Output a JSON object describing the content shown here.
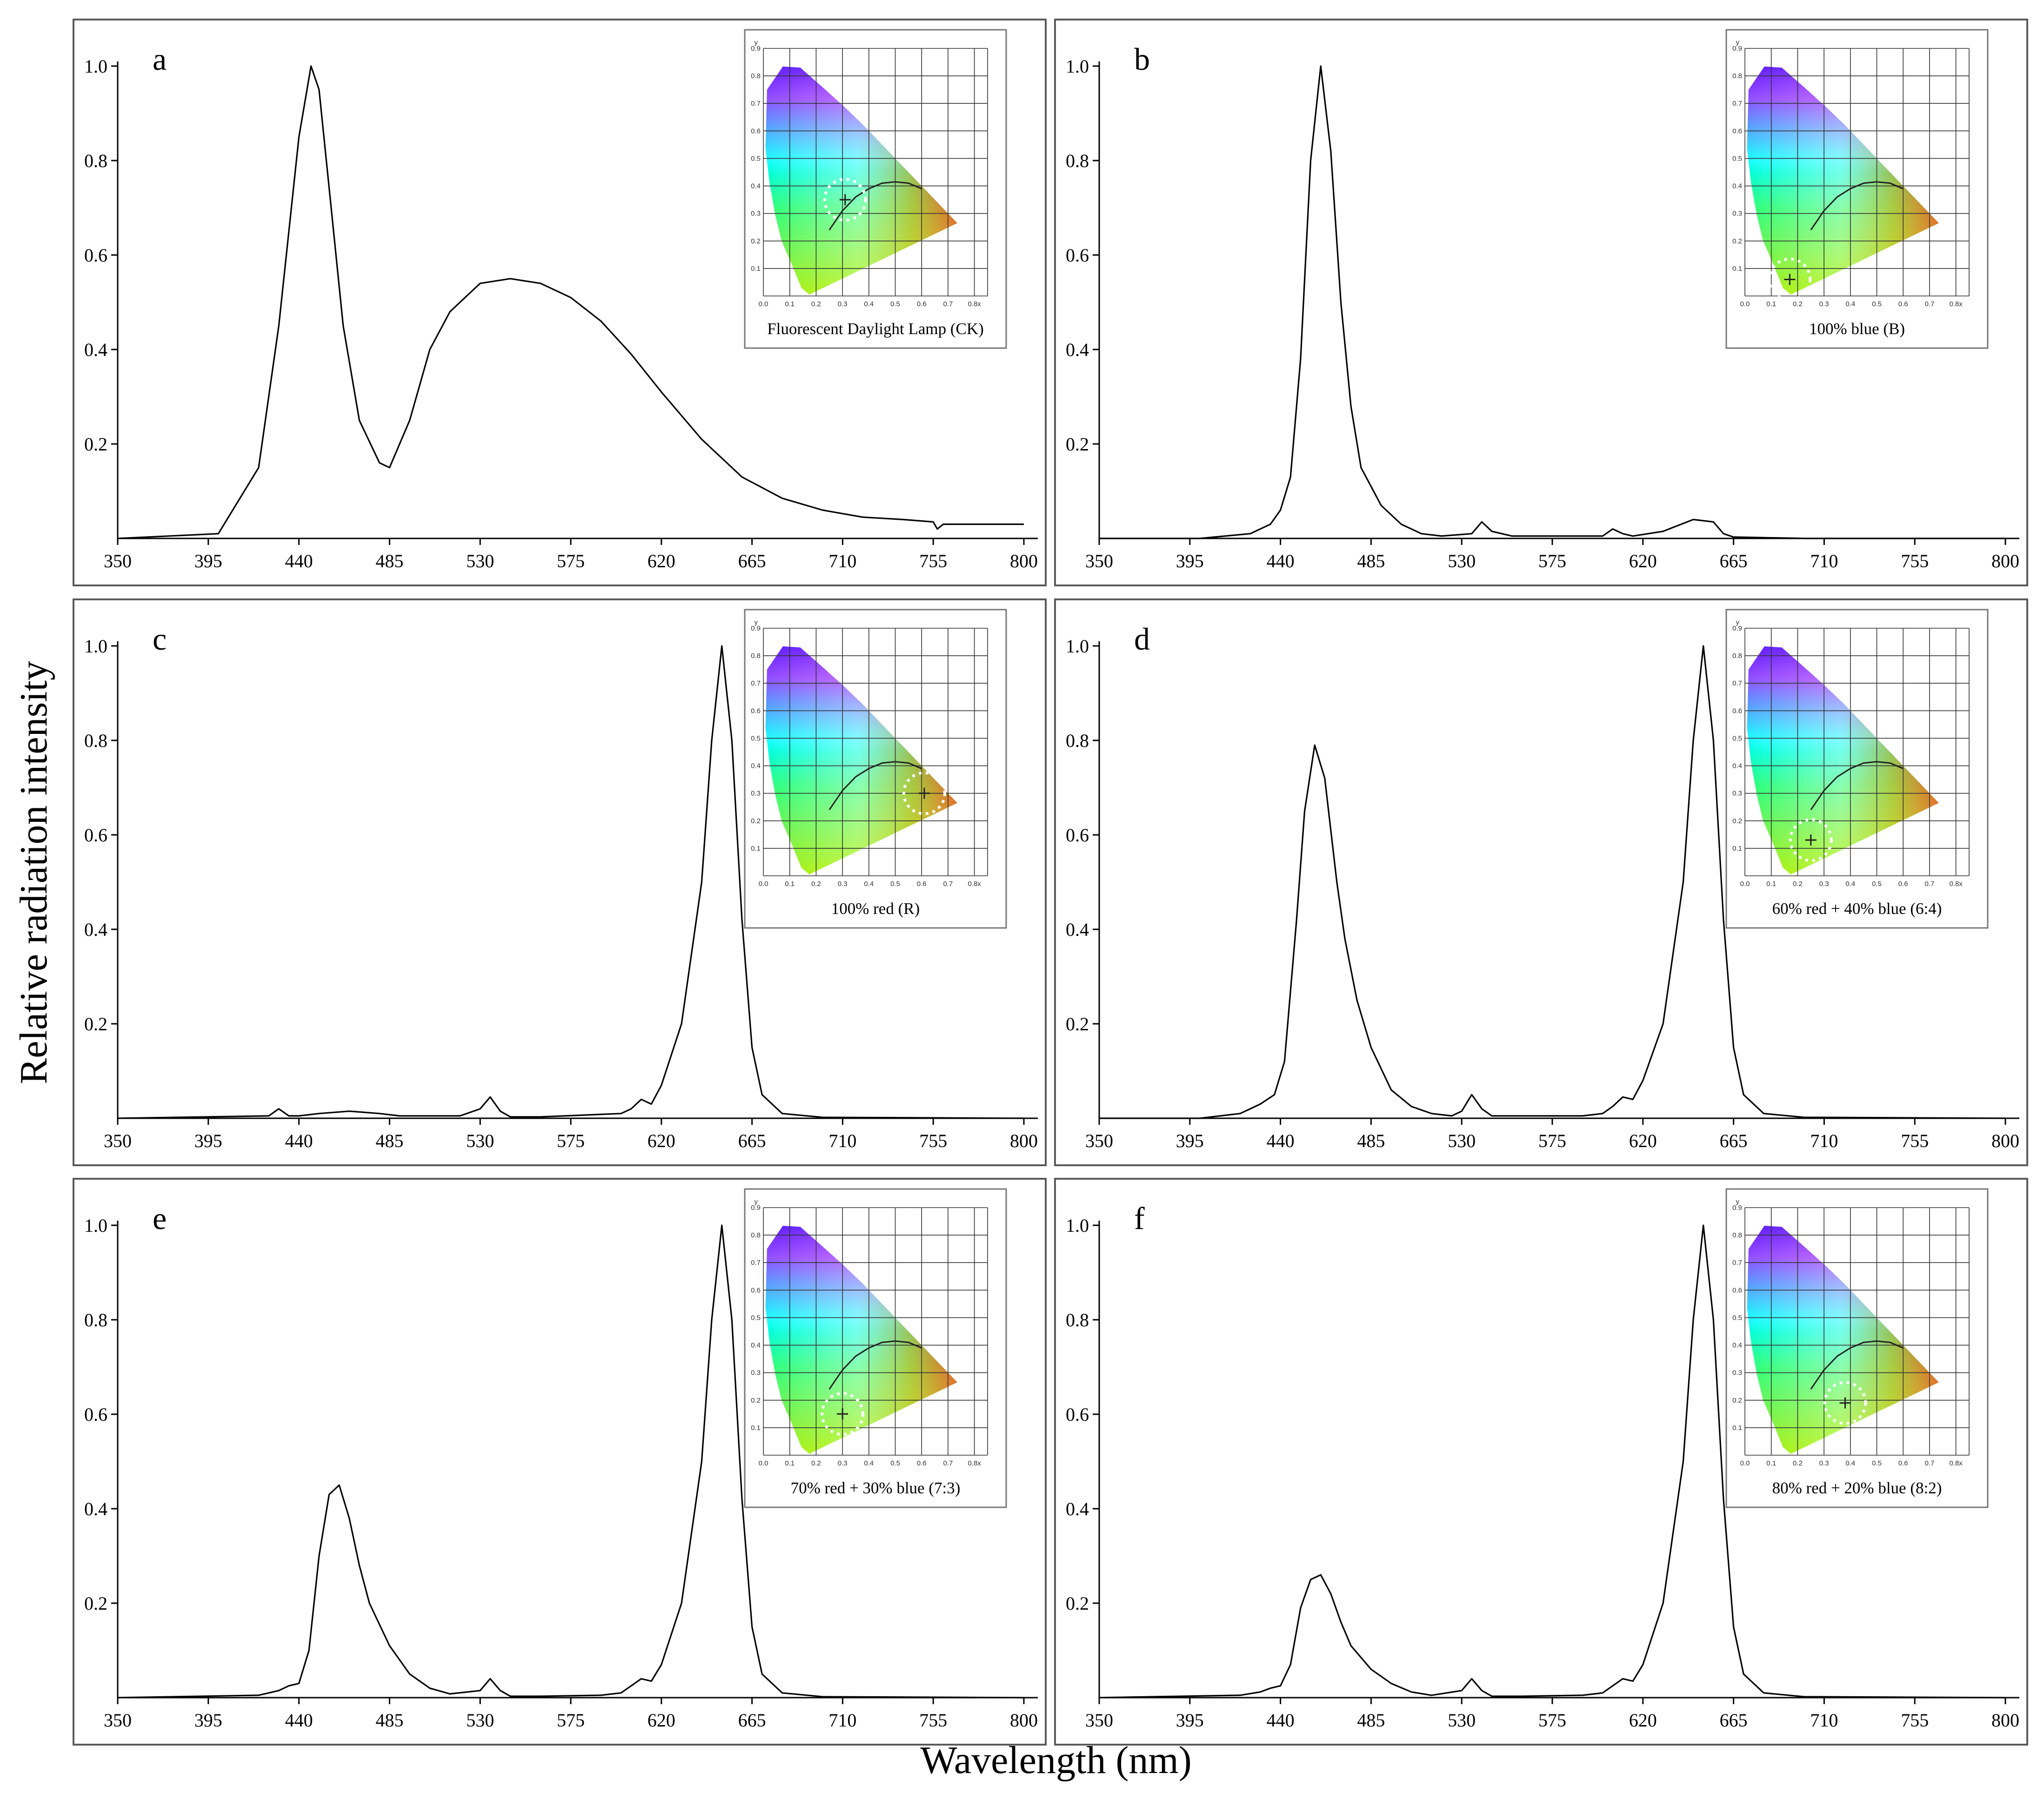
{
  "figure": {
    "ylabel": "Relative radiation intensity",
    "xlabel": "Wavelength (nm)"
  },
  "axis": {
    "x_ticks": [
      "350",
      "395",
      "440",
      "485",
      "530",
      "575",
      "620",
      "665",
      "710",
      "755",
      "800"
    ],
    "y_ticks": [
      "0.2",
      "0.4",
      "0.6",
      "0.8",
      "1.0"
    ]
  },
  "inset_axis": {
    "x_ticks": [
      "0.0",
      "0.1",
      "0.2",
      "0.3",
      "0.4",
      "0.5",
      "0.6",
      "0.7",
      "0.8x"
    ],
    "y_ticks": [
      "0.1",
      "0.2",
      "0.3",
      "0.4",
      "0.5",
      "0.6",
      "0.7",
      "0.8",
      "0.9"
    ],
    "y_title": "y"
  },
  "chart_data": [
    {
      "type": "line",
      "panel": "a",
      "inset_caption": "Fluorescent Daylight Lamp (CK)",
      "chromaticity_point": {
        "x": 0.31,
        "y": 0.35
      },
      "x": [
        350,
        400,
        420,
        430,
        440,
        446,
        450,
        456,
        462,
        470,
        480,
        485,
        495,
        505,
        515,
        530,
        545,
        560,
        575,
        590,
        605,
        620,
        640,
        660,
        680,
        700,
        720,
        740,
        755,
        757,
        760,
        770,
        780,
        800
      ],
      "values": [
        0.0,
        0.01,
        0.15,
        0.45,
        0.85,
        1.0,
        0.95,
        0.7,
        0.45,
        0.25,
        0.16,
        0.15,
        0.25,
        0.4,
        0.48,
        0.54,
        0.55,
        0.54,
        0.51,
        0.46,
        0.39,
        0.31,
        0.21,
        0.13,
        0.085,
        0.06,
        0.045,
        0.04,
        0.035,
        0.02,
        0.03,
        0.03,
        0.03,
        0.03
      ],
      "ylim": [
        0,
        1.0
      ],
      "xlim": [
        350,
        800
      ]
    },
    {
      "type": "line",
      "panel": "b",
      "inset_caption": "100% blue (B)",
      "chromaticity_point": {
        "x": 0.17,
        "y": 0.06
      },
      "x": [
        350,
        400,
        425,
        435,
        440,
        445,
        450,
        455,
        460,
        465,
        470,
        475,
        480,
        490,
        500,
        510,
        520,
        535,
        540,
        545,
        555,
        570,
        600,
        605,
        610,
        615,
        630,
        645,
        655,
        660,
        665,
        700,
        800
      ],
      "values": [
        0.0,
        0.0,
        0.01,
        0.03,
        0.06,
        0.13,
        0.38,
        0.8,
        1.0,
        0.82,
        0.5,
        0.28,
        0.15,
        0.07,
        0.03,
        0.01,
        0.005,
        0.01,
        0.035,
        0.015,
        0.005,
        0.005,
        0.005,
        0.02,
        0.01,
        0.005,
        0.015,
        0.04,
        0.035,
        0.01,
        0.003,
        0.0,
        0.0
      ],
      "ylim": [
        0,
        1.0
      ],
      "xlim": [
        350,
        800
      ]
    },
    {
      "type": "line",
      "panel": "c",
      "inset_caption": "100% red (R)",
      "chromaticity_point": {
        "x": 0.61,
        "y": 0.3
      },
      "x": [
        350,
        425,
        430,
        435,
        440,
        450,
        465,
        480,
        490,
        520,
        530,
        535,
        540,
        545,
        560,
        600,
        605,
        610,
        615,
        620,
        630,
        640,
        645,
        650,
        655,
        660,
        665,
        670,
        680,
        700,
        800
      ],
      "values": [
        0.0,
        0.005,
        0.02,
        0.005,
        0.005,
        0.01,
        0.015,
        0.01,
        0.005,
        0.005,
        0.02,
        0.045,
        0.015,
        0.003,
        0.003,
        0.01,
        0.02,
        0.04,
        0.03,
        0.07,
        0.2,
        0.5,
        0.8,
        1.0,
        0.8,
        0.42,
        0.15,
        0.05,
        0.01,
        0.002,
        0.0
      ],
      "ylim": [
        0,
        1.0
      ],
      "xlim": [
        350,
        800
      ]
    },
    {
      "type": "line",
      "panel": "d",
      "inset_caption": "60% red + 40% blue (6:4)",
      "chromaticity_point": {
        "x": 0.25,
        "y": 0.13
      },
      "x": [
        350,
        400,
        420,
        430,
        437,
        442,
        448,
        452,
        457,
        462,
        468,
        472,
        478,
        485,
        495,
        505,
        515,
        525,
        530,
        535,
        540,
        545,
        560,
        590,
        600,
        605,
        610,
        615,
        620,
        630,
        640,
        645,
        650,
        655,
        660,
        665,
        670,
        680,
        700,
        800
      ],
      "values": [
        0.0,
        0.0,
        0.01,
        0.03,
        0.05,
        0.12,
        0.42,
        0.65,
        0.79,
        0.72,
        0.5,
        0.38,
        0.25,
        0.15,
        0.06,
        0.025,
        0.01,
        0.005,
        0.015,
        0.05,
        0.02,
        0.005,
        0.005,
        0.005,
        0.01,
        0.025,
        0.045,
        0.04,
        0.08,
        0.2,
        0.5,
        0.8,
        1.0,
        0.8,
        0.42,
        0.15,
        0.05,
        0.01,
        0.002,
        0.0
      ],
      "ylim": [
        0,
        1.0
      ],
      "xlim": [
        350,
        800
      ]
    },
    {
      "type": "line",
      "panel": "e",
      "inset_caption": "70% red + 30% blue (7:3)",
      "chromaticity_point": {
        "x": 0.3,
        "y": 0.15
      },
      "x": [
        350,
        420,
        430,
        435,
        440,
        445,
        450,
        455,
        460,
        465,
        470,
        475,
        485,
        495,
        505,
        515,
        530,
        535,
        540,
        545,
        560,
        590,
        600,
        605,
        610,
        615,
        620,
        630,
        640,
        645,
        650,
        655,
        660,
        665,
        670,
        680,
        700,
        800
      ],
      "values": [
        0.0,
        0.005,
        0.015,
        0.025,
        0.03,
        0.1,
        0.3,
        0.43,
        0.45,
        0.38,
        0.28,
        0.2,
        0.11,
        0.05,
        0.02,
        0.008,
        0.015,
        0.04,
        0.015,
        0.003,
        0.003,
        0.005,
        0.01,
        0.025,
        0.04,
        0.035,
        0.07,
        0.2,
        0.5,
        0.8,
        1.0,
        0.8,
        0.42,
        0.15,
        0.05,
        0.01,
        0.002,
        0.0
      ],
      "ylim": [
        0,
        1.0
      ],
      "xlim": [
        350,
        800
      ]
    },
    {
      "type": "line",
      "panel": "f",
      "inset_caption": "80% red + 20% blue (8:2)",
      "chromaticity_point": {
        "x": 0.38,
        "y": 0.19
      },
      "x": [
        350,
        420,
        430,
        435,
        440,
        445,
        450,
        455,
        460,
        465,
        470,
        475,
        485,
        495,
        505,
        515,
        530,
        535,
        540,
        545,
        560,
        590,
        600,
        605,
        610,
        615,
        620,
        630,
        640,
        645,
        650,
        655,
        660,
        665,
        670,
        680,
        700,
        800
      ],
      "values": [
        0.0,
        0.005,
        0.012,
        0.02,
        0.025,
        0.07,
        0.19,
        0.25,
        0.26,
        0.22,
        0.16,
        0.11,
        0.06,
        0.03,
        0.012,
        0.005,
        0.015,
        0.04,
        0.015,
        0.003,
        0.003,
        0.005,
        0.01,
        0.025,
        0.04,
        0.035,
        0.07,
        0.2,
        0.5,
        0.8,
        1.0,
        0.8,
        0.42,
        0.15,
        0.05,
        0.01,
        0.002,
        0.0
      ],
      "ylim": [
        0,
        1.0
      ],
      "xlim": [
        350,
        800
      ]
    }
  ]
}
